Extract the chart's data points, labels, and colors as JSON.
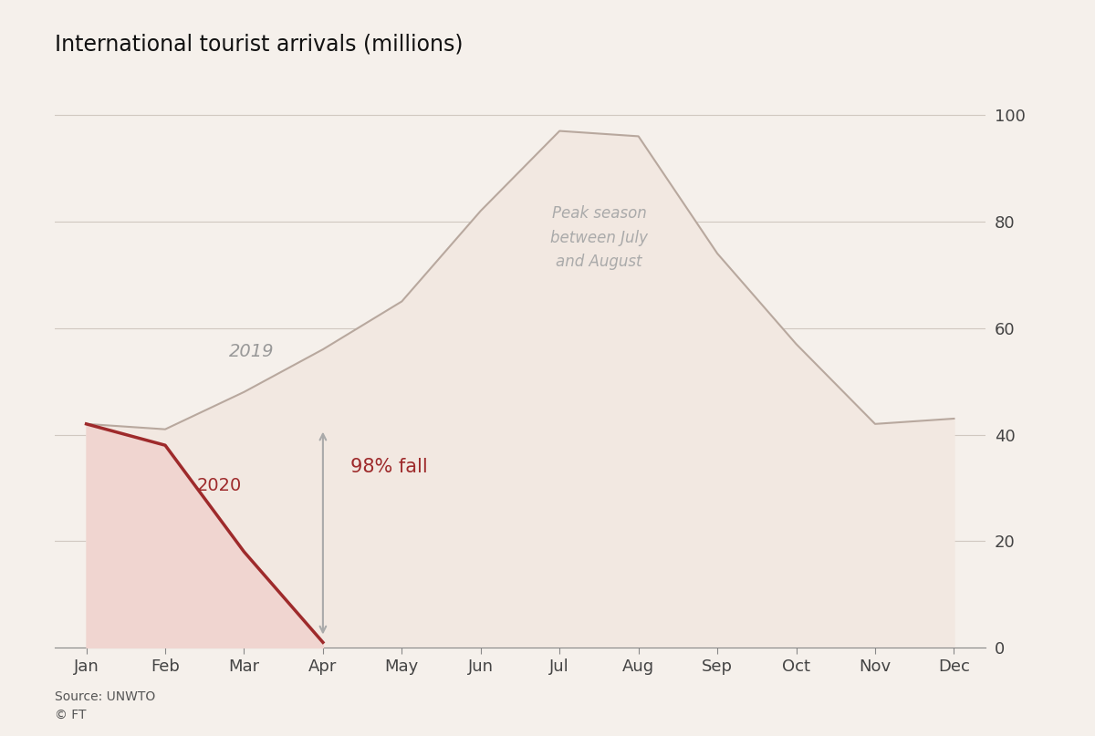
{
  "title": "International tourist arrivals (millions)",
  "source": "Source: UNWTO\n© FT",
  "bg_color": "#f5f0eb",
  "plot_bg_color": "#f5f0eb",
  "months": [
    "Jan",
    "Feb",
    "Mar",
    "Apr",
    "May",
    "Jun",
    "Jul",
    "Aug",
    "Sep",
    "Oct",
    "Nov",
    "Dec"
  ],
  "data_2019": [
    42,
    41,
    48,
    56,
    65,
    82,
    97,
    96,
    74,
    57,
    42,
    43
  ],
  "data_2020": [
    42,
    38,
    18,
    1,
    null,
    null,
    null,
    null,
    null,
    null,
    null,
    null
  ],
  "fill_2019_color": "#f2e8e1",
  "line_2019_color": "#b8a89e",
  "fill_2020_color": "#f0d5d0",
  "line_2020_color": "#9e2a2b",
  "ylim": [
    0,
    105
  ],
  "yticks": [
    0,
    20,
    40,
    60,
    80,
    100
  ],
  "annotation_peak": "Peak season\nbetween July\nand August",
  "annotation_fall": "98% fall",
  "annotation_2019": "2019",
  "annotation_2020": "2020",
  "title_fontsize": 17,
  "tick_fontsize": 13,
  "annotation_fontsize": 14,
  "grid_color": "#d0c8c0",
  "text_color": "#444444",
  "tick_color": "#888888"
}
